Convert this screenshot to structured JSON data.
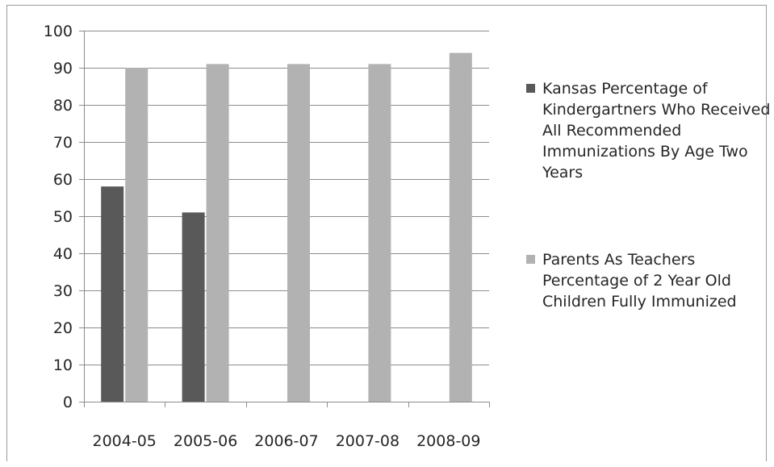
{
  "chart_data": {
    "type": "bar",
    "categories": [
      "2004-05",
      "2005-06",
      "2006-07",
      "2007-08",
      "2008-09"
    ],
    "series": [
      {
        "name": "Kansas Percentage of Kindergartners Who Received All Recommended Immunizations By Age Two Years",
        "color": "#595959",
        "values": [
          58,
          51,
          null,
          null,
          null
        ]
      },
      {
        "name": "Parents As Teachers Percentage of 2 Year Old Children Fully Immunized",
        "color": "#b2b2b2",
        "values": [
          90,
          91,
          91,
          91,
          94
        ]
      }
    ],
    "ylim": [
      0,
      100
    ],
    "yticks": [
      0,
      10,
      20,
      30,
      40,
      50,
      60,
      70,
      80,
      90,
      100
    ],
    "grid": true,
    "legend_position": "right"
  }
}
